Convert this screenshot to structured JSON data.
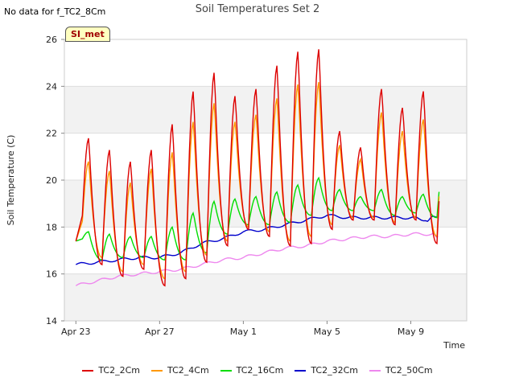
{
  "page": {
    "no_data_text": "No data for f_TC2_8Cm",
    "badge_text": "SI_met"
  },
  "chart_data": {
    "type": "line",
    "title": "Soil Temperatures Set 2",
    "xlabel": "Time",
    "ylabel": "Soil Temperature (C)",
    "ylim": [
      14,
      26
    ],
    "yticks": [
      "14",
      "16",
      "18",
      "20",
      "22",
      "24",
      "26"
    ],
    "xlim": [
      0,
      18
    ],
    "xticks": [
      {
        "label": "Apr 23",
        "value": 0
      },
      {
        "label": "Apr 27",
        "value": 4
      },
      {
        "label": "May 1",
        "value": 8
      },
      {
        "label": "May 5",
        "value": 12
      },
      {
        "label": "May 9",
        "value": 16
      }
    ],
    "x_units": "days since Apr 23",
    "grid": true,
    "alternating_bands": true,
    "legend_position": "bottom",
    "series": [
      {
        "name": "TC2_2Cm",
        "color": "#dd0000",
        "daily_max": [
          21.8,
          21.3,
          20.8,
          21.3,
          22.4,
          23.8,
          24.6,
          23.6,
          23.9,
          24.9,
          25.5,
          25.6,
          22.1,
          21.4,
          23.9,
          23.1,
          23.8
        ],
        "daily_min": [
          16.4,
          15.9,
          16.2,
          15.5,
          15.8,
          16.5,
          17.2,
          17.9,
          17.6,
          17.2,
          17.3,
          17.9,
          18.3,
          18.3,
          18.1,
          18.3,
          17.3
        ],
        "start": 17.4,
        "end": 19.1
      },
      {
        "name": "TC2_4Cm",
        "color": "#ff9900",
        "daily_max": [
          20.8,
          20.4,
          19.9,
          20.5,
          21.2,
          22.5,
          23.3,
          22.5,
          22.8,
          23.5,
          24.1,
          24.2,
          21.5,
          20.9,
          22.9,
          22.1,
          22.6
        ],
        "daily_min": [
          16.7,
          16.1,
          16.4,
          15.8,
          16.1,
          16.8,
          17.4,
          18.0,
          17.8,
          17.4,
          17.6,
          18.1,
          18.4,
          18.4,
          18.2,
          18.4,
          17.6
        ],
        "start": 17.4,
        "end": 19.3
      },
      {
        "name": "TC2_16Cm",
        "color": "#00dd00",
        "daily_max": [
          17.8,
          17.7,
          17.6,
          17.6,
          18.0,
          18.6,
          19.1,
          19.2,
          19.3,
          19.5,
          19.8,
          20.1,
          19.6,
          19.3,
          19.6,
          19.3,
          19.4
        ],
        "daily_min": [
          16.6,
          16.7,
          16.7,
          16.6,
          16.6,
          16.9,
          17.7,
          18.1,
          18.1,
          18.2,
          18.5,
          18.7,
          18.7,
          18.7,
          18.5,
          18.6,
          18.4
        ],
        "start": 17.4,
        "end": 19.5
      },
      {
        "name": "TC2_32Cm",
        "color": "#0000cc",
        "points": [
          [
            0,
            16.4
          ],
          [
            1,
            16.5
          ],
          [
            2,
            16.6
          ],
          [
            3,
            16.7
          ],
          [
            4,
            16.7
          ],
          [
            5,
            16.9
          ],
          [
            6,
            17.3
          ],
          [
            7,
            17.5
          ],
          [
            8,
            17.8
          ],
          [
            9,
            17.9
          ],
          [
            10,
            18.1
          ],
          [
            11,
            18.3
          ],
          [
            12,
            18.5
          ],
          [
            13,
            18.4
          ],
          [
            14,
            18.4
          ],
          [
            15,
            18.4
          ],
          [
            16,
            18.4
          ],
          [
            16.8,
            18.3
          ],
          [
            17.3,
            18.5
          ]
        ]
      },
      {
        "name": "TC2_50Cm",
        "color": "#ee88ee",
        "points": [
          [
            0,
            15.5
          ],
          [
            1,
            15.7
          ],
          [
            2,
            15.9
          ],
          [
            3,
            16.0
          ],
          [
            4,
            16.1
          ],
          [
            5,
            16.2
          ],
          [
            6,
            16.4
          ],
          [
            7,
            16.6
          ],
          [
            8,
            16.7
          ],
          [
            9,
            16.9
          ],
          [
            10,
            17.1
          ],
          [
            11,
            17.2
          ],
          [
            12,
            17.4
          ],
          [
            13,
            17.5
          ],
          [
            14,
            17.6
          ],
          [
            15,
            17.6
          ],
          [
            16,
            17.7
          ],
          [
            17,
            17.7
          ],
          [
            17.3,
            17.6
          ]
        ]
      }
    ]
  }
}
